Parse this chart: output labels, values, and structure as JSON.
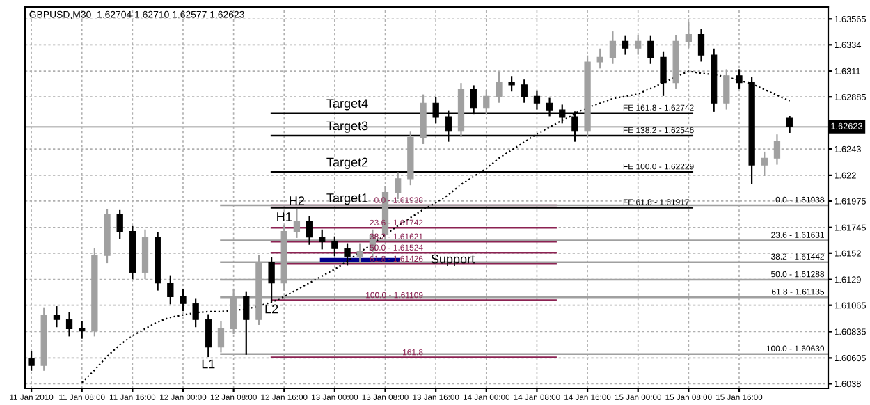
{
  "chart_data": {
    "type": "candlestick",
    "title": "GBPUSD,M30  1.62704 1.62710 1.62577 1.62623",
    "categories": [
      "11 Jan 2010",
      null,
      null,
      null,
      "11 Jan 08:00",
      null,
      null,
      null,
      "11 Jan 16:00",
      null,
      null,
      null,
      "12 Jan 00:00",
      null,
      null,
      null,
      "12 Jan 08:00",
      null,
      null,
      null,
      "12 Jan 16:00",
      null,
      null,
      null,
      "13 Jan 00:00",
      null,
      null,
      null,
      "13 Jan 08:00",
      null,
      null,
      null,
      "13 Jan 16:00",
      null,
      null,
      null,
      "14 Jan 00:00",
      null,
      null,
      null,
      "14 Jan 08:00",
      null,
      null,
      null,
      "14 Jan 16:00",
      null,
      null,
      null,
      "15 Jan 00:00",
      null,
      null,
      null,
      "15 Jan 08:00",
      null,
      null,
      null,
      "15 Jan 16:00",
      null,
      null,
      null,
      null
    ],
    "series": [
      {
        "ohlc": [
          [
            1.606,
            1.6066,
            1.605,
            1.6054
          ],
          [
            1.6054,
            1.6104,
            1.605,
            1.6098
          ],
          [
            1.6098,
            1.6105,
            1.6088,
            1.6094
          ],
          [
            1.6094,
            1.61,
            1.608,
            1.6086
          ],
          [
            1.6086,
            1.6092,
            1.6078,
            1.6084
          ],
          [
            1.6084,
            1.6156,
            1.608,
            1.615
          ],
          [
            1.615,
            1.619,
            1.6144,
            1.6186
          ],
          [
            1.6186,
            1.6189,
            1.6165,
            1.6171
          ],
          [
            1.6171,
            1.6175,
            1.613,
            1.6135
          ],
          [
            1.6135,
            1.6172,
            1.613,
            1.6166
          ],
          [
            1.6166,
            1.617,
            1.612,
            1.6126
          ],
          [
            1.6126,
            1.6132,
            1.6108,
            1.6114
          ],
          [
            1.6114,
            1.612,
            1.6102,
            1.6108
          ],
          [
            1.6108,
            1.6112,
            1.6088,
            1.6094
          ],
          [
            1.6094,
            1.6098,
            1.6062,
            1.607
          ],
          [
            1.607,
            1.6092,
            1.6066,
            1.6086
          ],
          [
            1.6086,
            1.612,
            1.6082,
            1.6114
          ],
          [
            1.6114,
            1.6118,
            1.6064,
            1.6094
          ],
          [
            1.6094,
            1.615,
            1.609,
            1.6144
          ],
          [
            1.6144,
            1.6148,
            1.611,
            1.6126
          ],
          [
            1.6126,
            1.6176,
            1.612,
            1.6171
          ],
          [
            1.6171,
            1.619,
            1.6166,
            1.618
          ],
          [
            1.618,
            1.6184,
            1.616,
            1.6166
          ],
          [
            1.6166,
            1.6172,
            1.6156,
            1.6162
          ],
          [
            1.6162,
            1.6166,
            1.615,
            1.6156
          ],
          [
            1.6156,
            1.616,
            1.6142,
            1.6149
          ],
          [
            1.6149,
            1.616,
            1.6145,
            1.6154
          ],
          [
            1.6154,
            1.6172,
            1.615,
            1.6168
          ],
          [
            1.6168,
            1.621,
            1.6164,
            1.6205
          ],
          [
            1.6205,
            1.6222,
            1.62,
            1.6217
          ],
          [
            1.6217,
            1.6258,
            1.6212,
            1.6253
          ],
          [
            1.6253,
            1.629,
            1.6248,
            1.6283
          ],
          [
            1.6283,
            1.6288,
            1.6266,
            1.6271
          ],
          [
            1.6271,
            1.6276,
            1.625,
            1.6259
          ],
          [
            1.6259,
            1.63,
            1.6254,
            1.6295
          ],
          [
            1.6295,
            1.6298,
            1.6274,
            1.6279
          ],
          [
            1.6279,
            1.6294,
            1.6274,
            1.6289
          ],
          [
            1.6289,
            1.631,
            1.6284,
            1.6301
          ],
          [
            1.6301,
            1.6306,
            1.6294,
            1.6299
          ],
          [
            1.6299,
            1.6303,
            1.6284,
            1.6289
          ],
          [
            1.6289,
            1.6293,
            1.6278,
            1.6283
          ],
          [
            1.6283,
            1.6287,
            1.6272,
            1.6277
          ],
          [
            1.6277,
            1.6281,
            1.6266,
            1.6271
          ],
          [
            1.6271,
            1.6275,
            1.625,
            1.6259
          ],
          [
            1.6259,
            1.6324,
            1.6254,
            1.6319
          ],
          [
            1.6319,
            1.633,
            1.6314,
            1.6323
          ],
          [
            1.6323,
            1.6345,
            1.6318,
            1.6337
          ],
          [
            1.6337,
            1.6341,
            1.6326,
            1.6331
          ],
          [
            1.6331,
            1.6342,
            1.6326,
            1.6337
          ],
          [
            1.6337,
            1.6341,
            1.6318,
            1.6323
          ],
          [
            1.6323,
            1.6327,
            1.629,
            1.6301
          ],
          [
            1.6301,
            1.6342,
            1.6296,
            1.6337
          ],
          [
            1.6337,
            1.6353,
            1.6332,
            1.6343
          ],
          [
            1.6343,
            1.6347,
            1.632,
            1.6325
          ],
          [
            1.6325,
            1.633,
            1.6276,
            1.6283
          ],
          [
            1.6283,
            1.6312,
            1.6278,
            1.6307
          ],
          [
            1.6307,
            1.6312,
            1.6296,
            1.6301
          ],
          [
            1.6301,
            1.6305,
            1.6213,
            1.6229
          ],
          [
            1.6229,
            1.624,
            1.622,
            1.6235
          ],
          [
            1.6235,
            1.6255,
            1.623,
            1.625
          ],
          [
            1.62704,
            1.6271,
            1.62577,
            1.62623
          ]
        ],
        "colors": [
          "#000000",
          "#a0a0a0",
          "#000000",
          "#000000",
          "#000000",
          "#a0a0a0",
          "#a0a0a0",
          "#000000",
          "#000000",
          "#a0a0a0",
          "#000000",
          "#000000",
          "#000000",
          "#000000",
          "#000000",
          "#a0a0a0",
          "#a0a0a0",
          "#000000",
          "#a0a0a0",
          "#000000",
          "#a0a0a0",
          "#a0a0a0",
          "#000000",
          "#000000",
          "#000000",
          "#000000",
          "#a0a0a0",
          "#a0a0a0",
          "#a0a0a0",
          "#a0a0a0",
          "#a0a0a0",
          "#a0a0a0",
          "#000000",
          "#000000",
          "#a0a0a0",
          "#000000",
          "#a0a0a0",
          "#a0a0a0",
          "#000000",
          "#000000",
          "#000000",
          "#000000",
          "#000000",
          "#000000",
          "#a0a0a0",
          "#a0a0a0",
          "#a0a0a0",
          "#000000",
          "#a0a0a0",
          "#000000",
          "#000000",
          "#a0a0a0",
          "#a0a0a0",
          "#000000",
          "#000000",
          "#a0a0a0",
          "#000000",
          "#000000",
          "#a0a0a0",
          "#a0a0a0",
          "#000000"
        ]
      },
      {
        "type": "line",
        "color": "#000000",
        "line_style": "dotted",
        "values": [
          null,
          null,
          null,
          null,
          1.6039,
          1.605,
          1.6062,
          1.6072,
          1.608,
          1.6086,
          1.6092,
          1.6096,
          1.6098,
          1.61,
          1.6101,
          1.6101,
          1.6102,
          1.6103,
          1.6106,
          1.6109,
          1.6114,
          1.612,
          1.6126,
          1.6132,
          1.6138,
          1.6145,
          1.6153,
          1.616,
          1.6168,
          1.6176,
          1.6183,
          1.619,
          1.6196,
          1.6203,
          1.6212,
          1.6219,
          1.6226,
          1.6235,
          1.6242,
          1.6249,
          1.6256,
          1.6262,
          1.6268,
          1.6274,
          1.6279,
          1.6283,
          1.6287,
          1.6289,
          1.6291,
          1.6296,
          1.6301,
          1.6306,
          1.6311,
          1.6309,
          1.6308,
          1.6306,
          1.6303,
          1.63,
          1.6295,
          1.629,
          1.6285
        ]
      }
    ],
    "ylim": [
      1.6034,
      1.6367
    ],
    "yticks": [
      1.63565,
      1.6334,
      1.6311,
      1.62885,
      1.6243,
      1.622,
      1.61975,
      1.61745,
      1.6152,
      1.6129,
      1.61065,
      1.60835,
      1.60605,
      1.6038
    ],
    "grid": true,
    "ref_lines": [
      {
        "axis": "y",
        "value": 1.62623,
        "label": "1.62623",
        "color": "#c0c0c0",
        "line_style": "solid"
      },
      {
        "axis": "y",
        "value": 1.61938,
        "color": "#8b2252",
        "line_style": "solid"
      },
      {
        "axis": "y",
        "value": 1.61742,
        "color": "#8b2252",
        "line_style": "solid"
      },
      {
        "axis": "y",
        "value": 1.61621,
        "color": "#8b2252",
        "line_style": "solid"
      },
      {
        "axis": "y",
        "value": 1.61524,
        "color": "#8b2252",
        "line_style": "solid"
      },
      {
        "axis": "y",
        "value": 1.61426,
        "color": "#8b2252",
        "line_style": "solid"
      },
      {
        "axis": "y",
        "value": 1.61109,
        "color": "#8b2252",
        "line_style": "solid"
      },
      {
        "axis": "y",
        "value": 1.6061,
        "color": "#8b2252",
        "line_style": "solid"
      },
      {
        "axis": "y",
        "value": 1.61938,
        "color": "#a0a0a0",
        "line_style": "solid"
      },
      {
        "axis": "y",
        "value": 1.61631,
        "color": "#a0a0a0",
        "line_style": "solid"
      },
      {
        "axis": "y",
        "value": 1.61442,
        "color": "#a0a0a0",
        "line_style": "solid"
      },
      {
        "axis": "y",
        "value": 1.61288,
        "color": "#a0a0a0",
        "line_style": "solid"
      },
      {
        "axis": "y",
        "value": 1.61135,
        "color": "#a0a0a0",
        "line_style": "solid"
      },
      {
        "axis": "y",
        "value": 1.60639,
        "color": "#a0a0a0",
        "line_style": "solid"
      },
      {
        "axis": "y",
        "value": 1.61917,
        "color": "#000000",
        "line_style": "solid"
      },
      {
        "axis": "y",
        "value": 1.62229,
        "color": "#000000",
        "line_style": "solid"
      },
      {
        "axis": "y",
        "value": 1.62546,
        "color": "#000000",
        "line_style": "solid"
      },
      {
        "axis": "y",
        "value": 1.62742,
        "color": "#000000",
        "line_style": "solid"
      },
      {
        "axis": "y",
        "value": 1.6146,
        "label": "Support",
        "color": "#00008b",
        "line_style": "solid"
      }
    ],
    "annotations": [
      {
        "text": "Target4",
        "y": 1.62742
      },
      {
        "text": "Target3",
        "y": 1.62546
      },
      {
        "text": "Target2",
        "y": 1.62229
      },
      {
        "text": "Target1",
        "y": 1.61917
      },
      {
        "text": "H1",
        "y": 1.6176
      },
      {
        "text": "H2",
        "y": 1.619
      },
      {
        "text": "L1",
        "y": 1.6062
      },
      {
        "text": "L2",
        "y": 1.611
      },
      {
        "text": "0.0 - 1.61938",
        "y": 1.61938
      },
      {
        "text": "23.6 - 1.61742",
        "y": 1.61742
      },
      {
        "text": "38.2 - 1.61621",
        "y": 1.61621
      },
      {
        "text": "50.0 - 1.61524",
        "y": 1.61524
      },
      {
        "text": "61.8 - 1.61426",
        "y": 1.61426
      },
      {
        "text": "100.0 - 1.61109",
        "y": 1.61109
      },
      {
        "text": "161.8",
        "y": 1.6061
      },
      {
        "text": "0.0 - 1.61938",
        "y": 1.61938
      },
      {
        "text": "23.6 - 1.61631",
        "y": 1.61631
      },
      {
        "text": "38.2 - 1.61442",
        "y": 1.61442
      },
      {
        "text": "50.0 - 1.61288",
        "y": 1.61288
      },
      {
        "text": "61.8 - 1.61135",
        "y": 1.61135
      },
      {
        "text": "100.0 - 1.60639",
        "y": 1.60639
      },
      {
        "text": "FE 61.8 - 1.61917",
        "y": 1.61917
      },
      {
        "text": "FE 100.0 - 1.62229",
        "y": 1.62229
      },
      {
        "text": "FE 138.2 - 1.62546",
        "y": 1.62546
      },
      {
        "text": "FE 161.8 - 1.62742",
        "y": 1.62742
      }
    ]
  }
}
